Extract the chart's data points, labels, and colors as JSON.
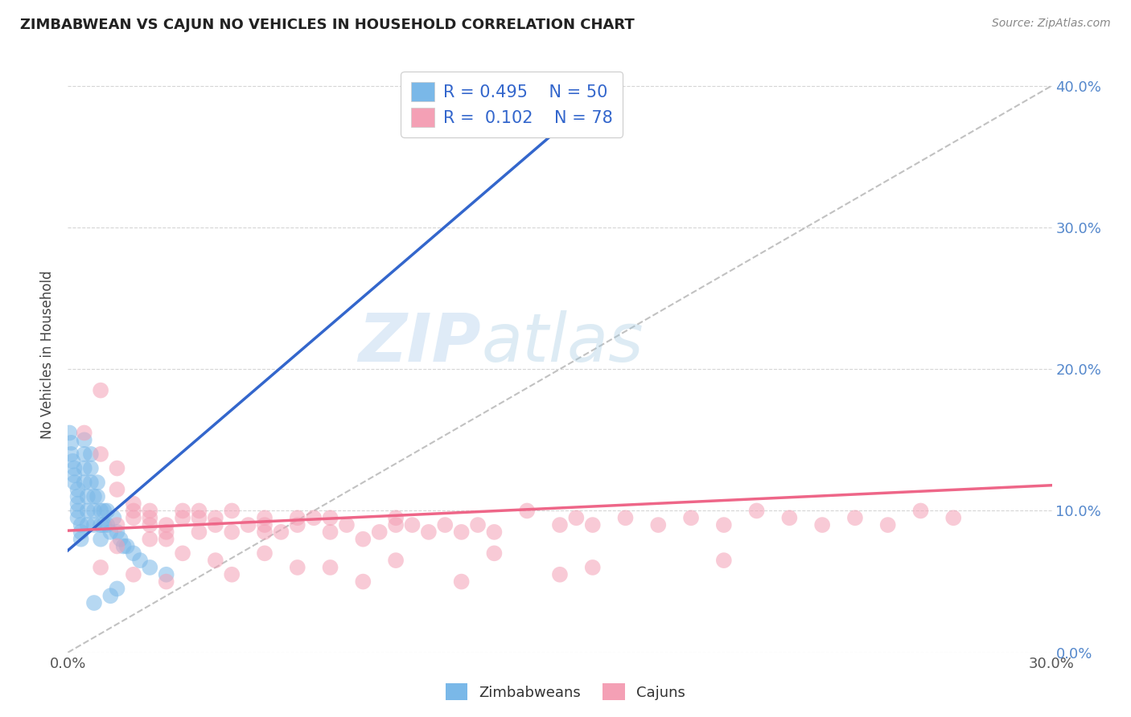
{
  "title": "ZIMBABWEAN VS CAJUN NO VEHICLES IN HOUSEHOLD CORRELATION CHART",
  "source_text": "Source: ZipAtlas.com",
  "ylabel": "No Vehicles in Household",
  "blue_color": "#7ab8e8",
  "pink_color": "#f4a0b5",
  "blue_line_color": "#3366cc",
  "pink_line_color": "#ee6688",
  "ref_line_color": "#bbbbbb",
  "background_color": "#ffffff",
  "grid_color": "#cccccc",
  "title_color": "#222222",
  "legend_text_color": "#3366cc",
  "watermark_color": "#cce0f5",
  "xmin": 0.0,
  "xmax": 0.3,
  "ymin": 0.0,
  "ymax": 0.42,
  "y_ticks": [
    0.0,
    0.1,
    0.2,
    0.3,
    0.4
  ],
  "blue_scatter_x": [
    0.0005,
    0.001,
    0.001,
    0.0015,
    0.002,
    0.002,
    0.002,
    0.003,
    0.003,
    0.003,
    0.003,
    0.003,
    0.004,
    0.004,
    0.004,
    0.005,
    0.005,
    0.005,
    0.005,
    0.006,
    0.006,
    0.006,
    0.007,
    0.007,
    0.007,
    0.008,
    0.008,
    0.008,
    0.009,
    0.009,
    0.01,
    0.01,
    0.01,
    0.011,
    0.011,
    0.012,
    0.012,
    0.013,
    0.014,
    0.015,
    0.016,
    0.017,
    0.018,
    0.02,
    0.022,
    0.025,
    0.03,
    0.015,
    0.013,
    0.008
  ],
  "blue_scatter_y": [
    0.155,
    0.148,
    0.14,
    0.135,
    0.13,
    0.125,
    0.12,
    0.115,
    0.11,
    0.105,
    0.1,
    0.095,
    0.09,
    0.085,
    0.08,
    0.15,
    0.14,
    0.13,
    0.12,
    0.11,
    0.1,
    0.09,
    0.14,
    0.13,
    0.12,
    0.11,
    0.1,
    0.09,
    0.12,
    0.11,
    0.1,
    0.09,
    0.08,
    0.1,
    0.09,
    0.1,
    0.09,
    0.085,
    0.095,
    0.085,
    0.08,
    0.075,
    0.075,
    0.07,
    0.065,
    0.06,
    0.055,
    0.045,
    0.04,
    0.035
  ],
  "pink_scatter_x": [
    0.005,
    0.01,
    0.01,
    0.015,
    0.015,
    0.015,
    0.02,
    0.02,
    0.02,
    0.025,
    0.025,
    0.025,
    0.03,
    0.03,
    0.03,
    0.035,
    0.035,
    0.04,
    0.04,
    0.04,
    0.045,
    0.045,
    0.05,
    0.05,
    0.055,
    0.06,
    0.06,
    0.06,
    0.065,
    0.07,
    0.07,
    0.075,
    0.08,
    0.08,
    0.085,
    0.09,
    0.095,
    0.1,
    0.1,
    0.105,
    0.11,
    0.115,
    0.12,
    0.125,
    0.13,
    0.14,
    0.15,
    0.155,
    0.16,
    0.17,
    0.18,
    0.19,
    0.2,
    0.21,
    0.22,
    0.23,
    0.24,
    0.25,
    0.26,
    0.27,
    0.015,
    0.025,
    0.035,
    0.045,
    0.06,
    0.08,
    0.1,
    0.13,
    0.16,
    0.2,
    0.01,
    0.02,
    0.03,
    0.05,
    0.07,
    0.09,
    0.12,
    0.15
  ],
  "pink_scatter_y": [
    0.155,
    0.14,
    0.185,
    0.13,
    0.09,
    0.115,
    0.1,
    0.095,
    0.105,
    0.09,
    0.095,
    0.1,
    0.08,
    0.085,
    0.09,
    0.1,
    0.095,
    0.085,
    0.095,
    0.1,
    0.09,
    0.095,
    0.1,
    0.085,
    0.09,
    0.085,
    0.095,
    0.09,
    0.085,
    0.095,
    0.09,
    0.095,
    0.085,
    0.095,
    0.09,
    0.08,
    0.085,
    0.09,
    0.095,
    0.09,
    0.085,
    0.09,
    0.085,
    0.09,
    0.085,
    0.1,
    0.09,
    0.095,
    0.09,
    0.095,
    0.09,
    0.095,
    0.09,
    0.1,
    0.095,
    0.09,
    0.095,
    0.09,
    0.1,
    0.095,
    0.075,
    0.08,
    0.07,
    0.065,
    0.07,
    0.06,
    0.065,
    0.07,
    0.06,
    0.065,
    0.06,
    0.055,
    0.05,
    0.055,
    0.06,
    0.05,
    0.05,
    0.055
  ],
  "blue_trend_x": [
    0.0,
    0.155
  ],
  "blue_trend_y": [
    0.072,
    0.38
  ],
  "pink_trend_x": [
    0.0,
    0.3
  ],
  "pink_trend_y": [
    0.086,
    0.118
  ],
  "ref_line_x": [
    0.0,
    0.3
  ],
  "ref_line_y": [
    0.0,
    0.4
  ],
  "legend_r1": "R = 0.495",
  "legend_n1": "N = 50",
  "legend_r2": "R =  0.102",
  "legend_n2": "N = 78"
}
